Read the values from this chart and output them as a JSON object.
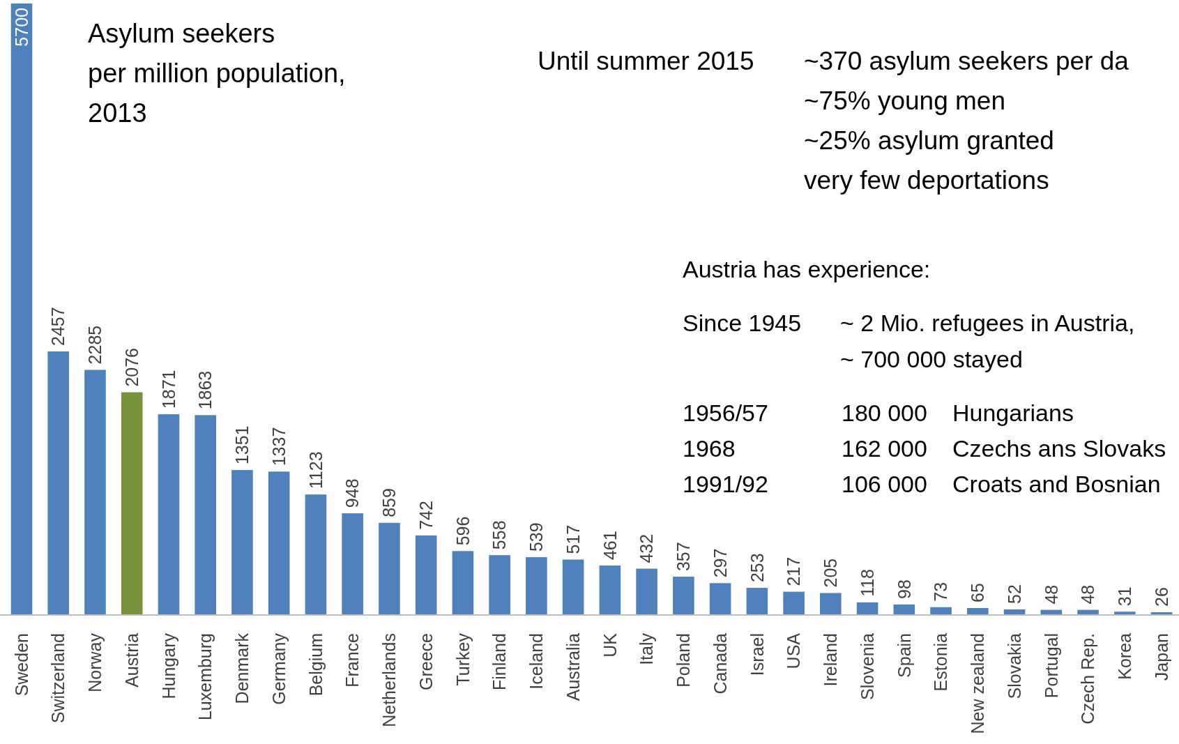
{
  "chart_data": {
    "type": "bar",
    "title": "Asylum seekers\nper million population,\n2013",
    "categories": [
      "Sweden",
      "Switzerland",
      "Norway",
      "Austria",
      "Hungary",
      "Luxemburg",
      "Denmark",
      "Germany",
      "Belgium",
      "France",
      "Netherlands",
      "Greece",
      "Turkey",
      "Finland",
      "Iceland",
      "Australia",
      "UK",
      "Italy",
      "Poland",
      "Canada",
      "Israel",
      "USA",
      "Ireland",
      "Slovenia",
      "Spain",
      "Estonia",
      "New zealand",
      "Slovakia",
      "Portugal",
      "Czech Rep.",
      "Korea",
      "Japan"
    ],
    "values": [
      5700,
      2457,
      2285,
      2076,
      1871,
      1863,
      1351,
      1337,
      1123,
      948,
      859,
      742,
      596,
      558,
      539,
      517,
      461,
      432,
      357,
      297,
      253,
      217,
      205,
      118,
      98,
      73,
      65,
      52,
      48,
      48,
      31,
      26
    ],
    "colors": [
      "#4f81bd",
      "#4f81bd",
      "#4f81bd",
      "#77933c",
      "#4f81bd",
      "#4f81bd",
      "#4f81bd",
      "#4f81bd",
      "#4f81bd",
      "#4f81bd",
      "#4f81bd",
      "#4f81bd",
      "#4f81bd",
      "#4f81bd",
      "#4f81bd",
      "#4f81bd",
      "#4f81bd",
      "#4f81bd",
      "#4f81bd",
      "#4f81bd",
      "#4f81bd",
      "#4f81bd",
      "#4f81bd",
      "#4f81bd",
      "#4f81bd",
      "#4f81bd",
      "#4f81bd",
      "#4f81bd",
      "#4f81bd",
      "#4f81bd",
      "#4f81bd",
      "#4f81bd"
    ],
    "ylim": [
      0,
      5700
    ],
    "data_labels": true,
    "tick_labels": "x",
    "annotations": [
      "Until summer 2015",
      "~370 asylum seekers per da",
      "~75% young men",
      "~25% asylum granted",
      "very few deportations",
      "Austria has experience:",
      "Since 1945",
      "~ 2 Mio. refugees in Austria,",
      "~ 700 000 stayed",
      "1956/57",
      "180 000",
      "Hungarians",
      "1968",
      "162 000",
      "Czechs ans Slovaks",
      "1991/92",
      "106 000",
      "Croats and Bosnian"
    ]
  }
}
